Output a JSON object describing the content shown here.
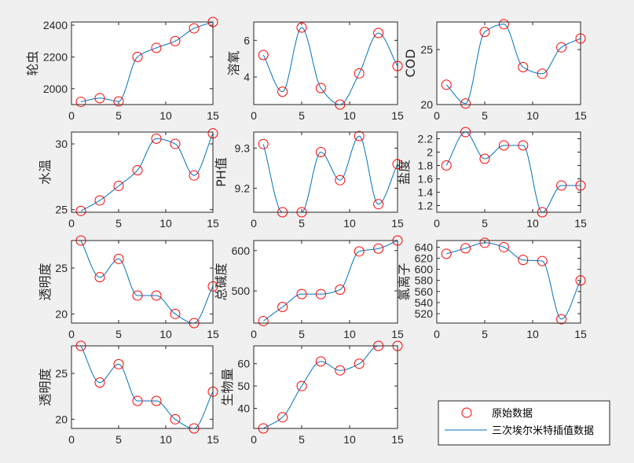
{
  "colors": {
    "background": "#f0f0f0",
    "axes_bg": "#ffffff",
    "marker": "#ff0000",
    "line": "#0072bd",
    "axis": "#262626"
  },
  "legend": {
    "entries": [
      "原始数据",
      "三次埃尔米特插值数据"
    ],
    "placement": "bottom-right"
  },
  "chart_data": [
    {
      "type": "line",
      "ylabel": "轮虫",
      "xlim": [
        0,
        15
      ],
      "ylim": [
        1900,
        2420
      ],
      "xticks": [
        0,
        5,
        10,
        15
      ],
      "yticks": [
        2000,
        2200,
        2400
      ],
      "x": [
        1,
        3,
        5,
        7,
        9,
        11,
        13,
        15
      ],
      "y": [
        1917,
        1940,
        1920,
        2200,
        2257,
        2300,
        2380,
        2420
      ]
    },
    {
      "type": "line",
      "ylabel": "溶氧",
      "xlim": [
        0,
        15
      ],
      "ylim": [
        2.5,
        7.0
      ],
      "xticks": [
        0,
        5,
        10,
        15
      ],
      "yticks": [
        4,
        6
      ],
      "x": [
        1,
        3,
        5,
        7,
        9,
        11,
        13,
        15
      ],
      "y": [
        5.2,
        3.2,
        6.7,
        3.4,
        2.5,
        4.2,
        6.4,
        4.6
      ]
    },
    {
      "type": "line",
      "ylabel": "COD",
      "xlim": [
        0,
        15
      ],
      "ylim": [
        20,
        27.5
      ],
      "xticks": [
        0,
        5,
        10,
        15
      ],
      "yticks": [
        20,
        25
      ],
      "x": [
        1,
        3,
        5,
        7,
        9,
        11,
        13,
        15
      ],
      "y": [
        21.8,
        20.1,
        26.6,
        27.3,
        23.4,
        22.8,
        25.2,
        26.0
      ]
    },
    {
      "type": "line",
      "ylabel": "水温",
      "xlim": [
        0,
        15
      ],
      "ylim": [
        24.8,
        30.9
      ],
      "xticks": [
        0,
        5,
        10,
        15
      ],
      "yticks": [
        25,
        30
      ],
      "x": [
        1,
        3,
        5,
        7,
        9,
        11,
        13,
        15
      ],
      "y": [
        24.9,
        25.7,
        26.8,
        28.0,
        30.4,
        30.0,
        27.6,
        30.8
      ]
    },
    {
      "type": "line",
      "ylabel": "PH值",
      "xlim": [
        0,
        15
      ],
      "ylim": [
        9.14,
        9.34
      ],
      "xticks": [
        0,
        5,
        10,
        15
      ],
      "yticks": [
        9.2,
        9.3
      ],
      "x": [
        1,
        3,
        5,
        7,
        9,
        11,
        13,
        15
      ],
      "y": [
        9.31,
        9.14,
        9.14,
        9.29,
        9.22,
        9.33,
        9.16,
        9.26
      ]
    },
    {
      "type": "line",
      "ylabel": "盐度",
      "xlim": [
        0,
        15
      ],
      "ylim": [
        1.1,
        2.3
      ],
      "xticks": [
        0,
        5,
        10,
        15
      ],
      "yticks": [
        1.2,
        1.4,
        1.6,
        1.8,
        2.0,
        2.2
      ],
      "yticklabels": [
        "1.2",
        "1.4",
        "1.6",
        "1.8",
        "2",
        "2.2"
      ],
      "x": [
        1,
        3,
        5,
        7,
        9,
        11,
        13,
        15
      ],
      "y": [
        1.8,
        2.3,
        1.9,
        2.1,
        2.1,
        1.1,
        1.5,
        1.5
      ]
    },
    {
      "type": "line",
      "ylabel": "透明度",
      "xlim": [
        0,
        15
      ],
      "ylim": [
        19,
        28
      ],
      "xticks": [
        0,
        5,
        10,
        15
      ],
      "yticks": [
        20,
        25
      ],
      "x": [
        1,
        3,
        5,
        7,
        9,
        11,
        13,
        15
      ],
      "y": [
        28,
        24,
        26,
        22,
        22,
        20,
        19,
        23
      ]
    },
    {
      "type": "line",
      "ylabel": "总碱度",
      "xlim": [
        0,
        15
      ],
      "ylim": [
        420,
        625
      ],
      "xticks": [
        0,
        5,
        10,
        15
      ],
      "yticks": [
        500,
        600
      ],
      "x": [
        1,
        3,
        5,
        7,
        9,
        11,
        13,
        15
      ],
      "y": [
        425,
        460,
        492,
        492,
        503,
        598,
        605,
        625
      ]
    },
    {
      "type": "line",
      "ylabel": "氯离子",
      "xlim": [
        0,
        15
      ],
      "ylim": [
        503,
        652
      ],
      "xticks": [
        0,
        5,
        10,
        15
      ],
      "yticks": [
        520,
        540,
        560,
        580,
        600,
        620,
        640
      ],
      "x": [
        1,
        3,
        5,
        7,
        9,
        11,
        13,
        15
      ],
      "y": [
        628,
        638,
        648,
        640,
        617,
        615,
        510,
        580
      ]
    },
    {
      "type": "line",
      "ylabel": "透明度",
      "xlim": [
        0,
        15
      ],
      "ylim": [
        19,
        28
      ],
      "xticks": [
        0,
        5,
        10,
        15
      ],
      "yticks": [
        20,
        25
      ],
      "x": [
        1,
        3,
        5,
        7,
        9,
        11,
        13,
        15
      ],
      "y": [
        28,
        24,
        26,
        22,
        22,
        20,
        19,
        23
      ]
    },
    {
      "type": "line",
      "ylabel": "生物量",
      "xlim": [
        0,
        15
      ],
      "ylim": [
        31,
        68
      ],
      "xticks": [
        0,
        5,
        10,
        15
      ],
      "yticks": [
        40,
        50,
        60
      ],
      "x": [
        1,
        3,
        5,
        7,
        9,
        11,
        13,
        15
      ],
      "y": [
        31,
        36,
        50,
        61,
        57,
        60,
        68,
        68
      ]
    }
  ]
}
